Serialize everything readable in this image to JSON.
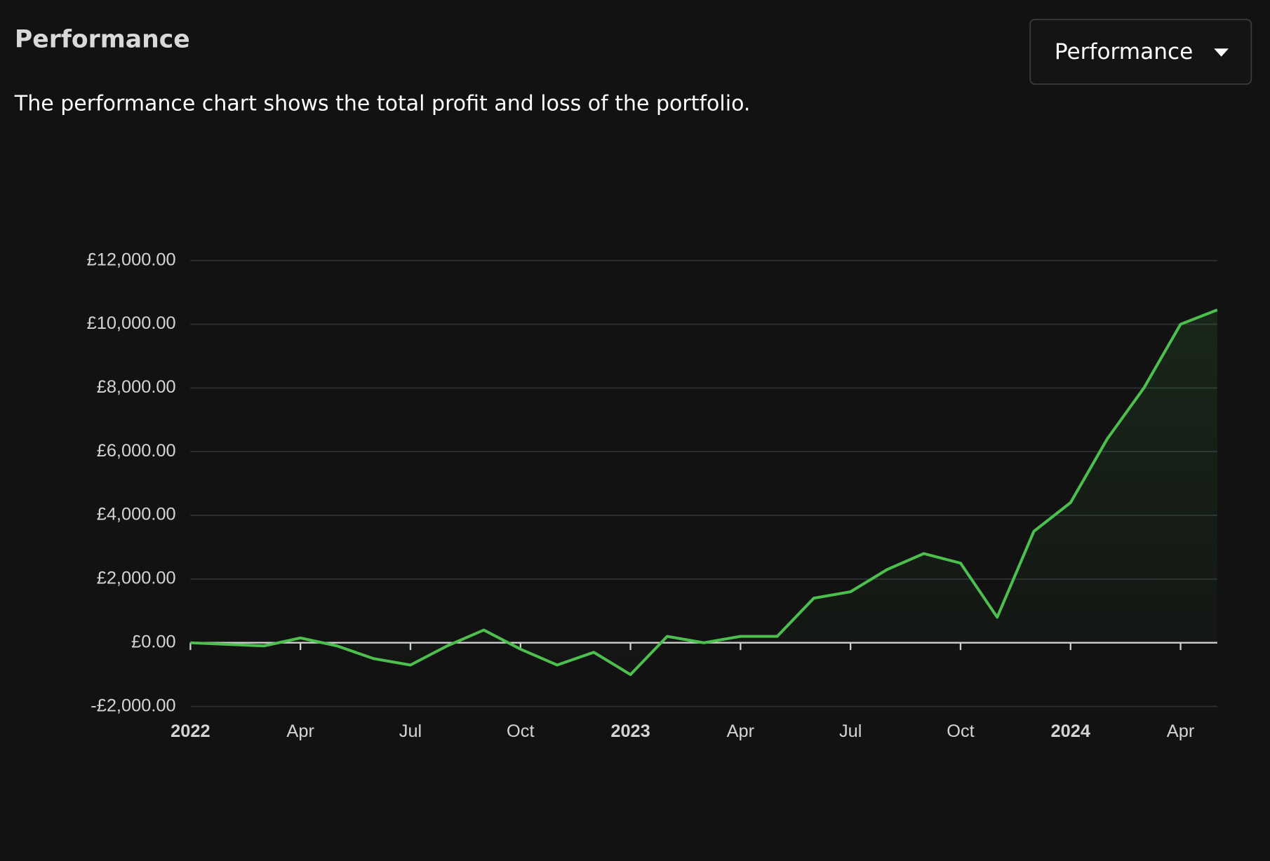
{
  "header": {
    "title": "Performance",
    "description": "The performance chart shows the total profit and loss of the portfolio.",
    "dropdown": "Performance"
  },
  "chart_data": {
    "type": "line",
    "x": [
      "2022-01",
      "2022-02",
      "2022-03",
      "2022-04",
      "2022-05",
      "2022-06",
      "2022-07",
      "2022-08",
      "2022-09",
      "2022-10",
      "2022-11",
      "2022-12",
      "2023-01",
      "2023-02",
      "2023-03",
      "2023-04",
      "2023-05",
      "2023-06",
      "2023-07",
      "2023-08",
      "2023-09",
      "2023-10",
      "2023-11",
      "2023-12",
      "2024-01",
      "2024-02",
      "2024-03",
      "2024-04",
      "2024-05"
    ],
    "values": [
      0,
      -50,
      -100,
      150,
      -100,
      -500,
      -700,
      -100,
      400,
      -200,
      -700,
      -300,
      -1000,
      200,
      0,
      200,
      200,
      1400,
      1600,
      2300,
      2800,
      2500,
      800,
      3500,
      4400,
      6400,
      8000,
      10000,
      10450
    ],
    "color": "#4cbf4f",
    "xlim": [
      "2022-01",
      "2024-05"
    ],
    "xticks": [
      {
        "value": "2022-01",
        "label": "2022"
      },
      {
        "value": "2022-04",
        "label": "Apr"
      },
      {
        "value": "2022-07",
        "label": "Jul"
      },
      {
        "value": "2022-10",
        "label": "Oct"
      },
      {
        "value": "2023-01",
        "label": "2023"
      },
      {
        "value": "2023-04",
        "label": "Apr"
      },
      {
        "value": "2023-07",
        "label": "Jul"
      },
      {
        "value": "2023-10",
        "label": "Oct"
      },
      {
        "value": "2024-01",
        "label": "2024"
      },
      {
        "value": "2024-04",
        "label": "Apr"
      }
    ],
    "ylim": [
      -2000,
      12000
    ],
    "yticks": [
      {
        "value": -2000,
        "label": "-£2,000.00"
      },
      {
        "value": 0,
        "label": "£0.00"
      },
      {
        "value": 2000,
        "label": "£2,000.00"
      },
      {
        "value": 4000,
        "label": "£4,000.00"
      },
      {
        "value": 6000,
        "label": "£6,000.00"
      },
      {
        "value": 8000,
        "label": "£8,000.00"
      },
      {
        "value": 10000,
        "label": "£10,000.00"
      },
      {
        "value": 12000,
        "label": "£12,000.00"
      }
    ],
    "grid": true
  }
}
